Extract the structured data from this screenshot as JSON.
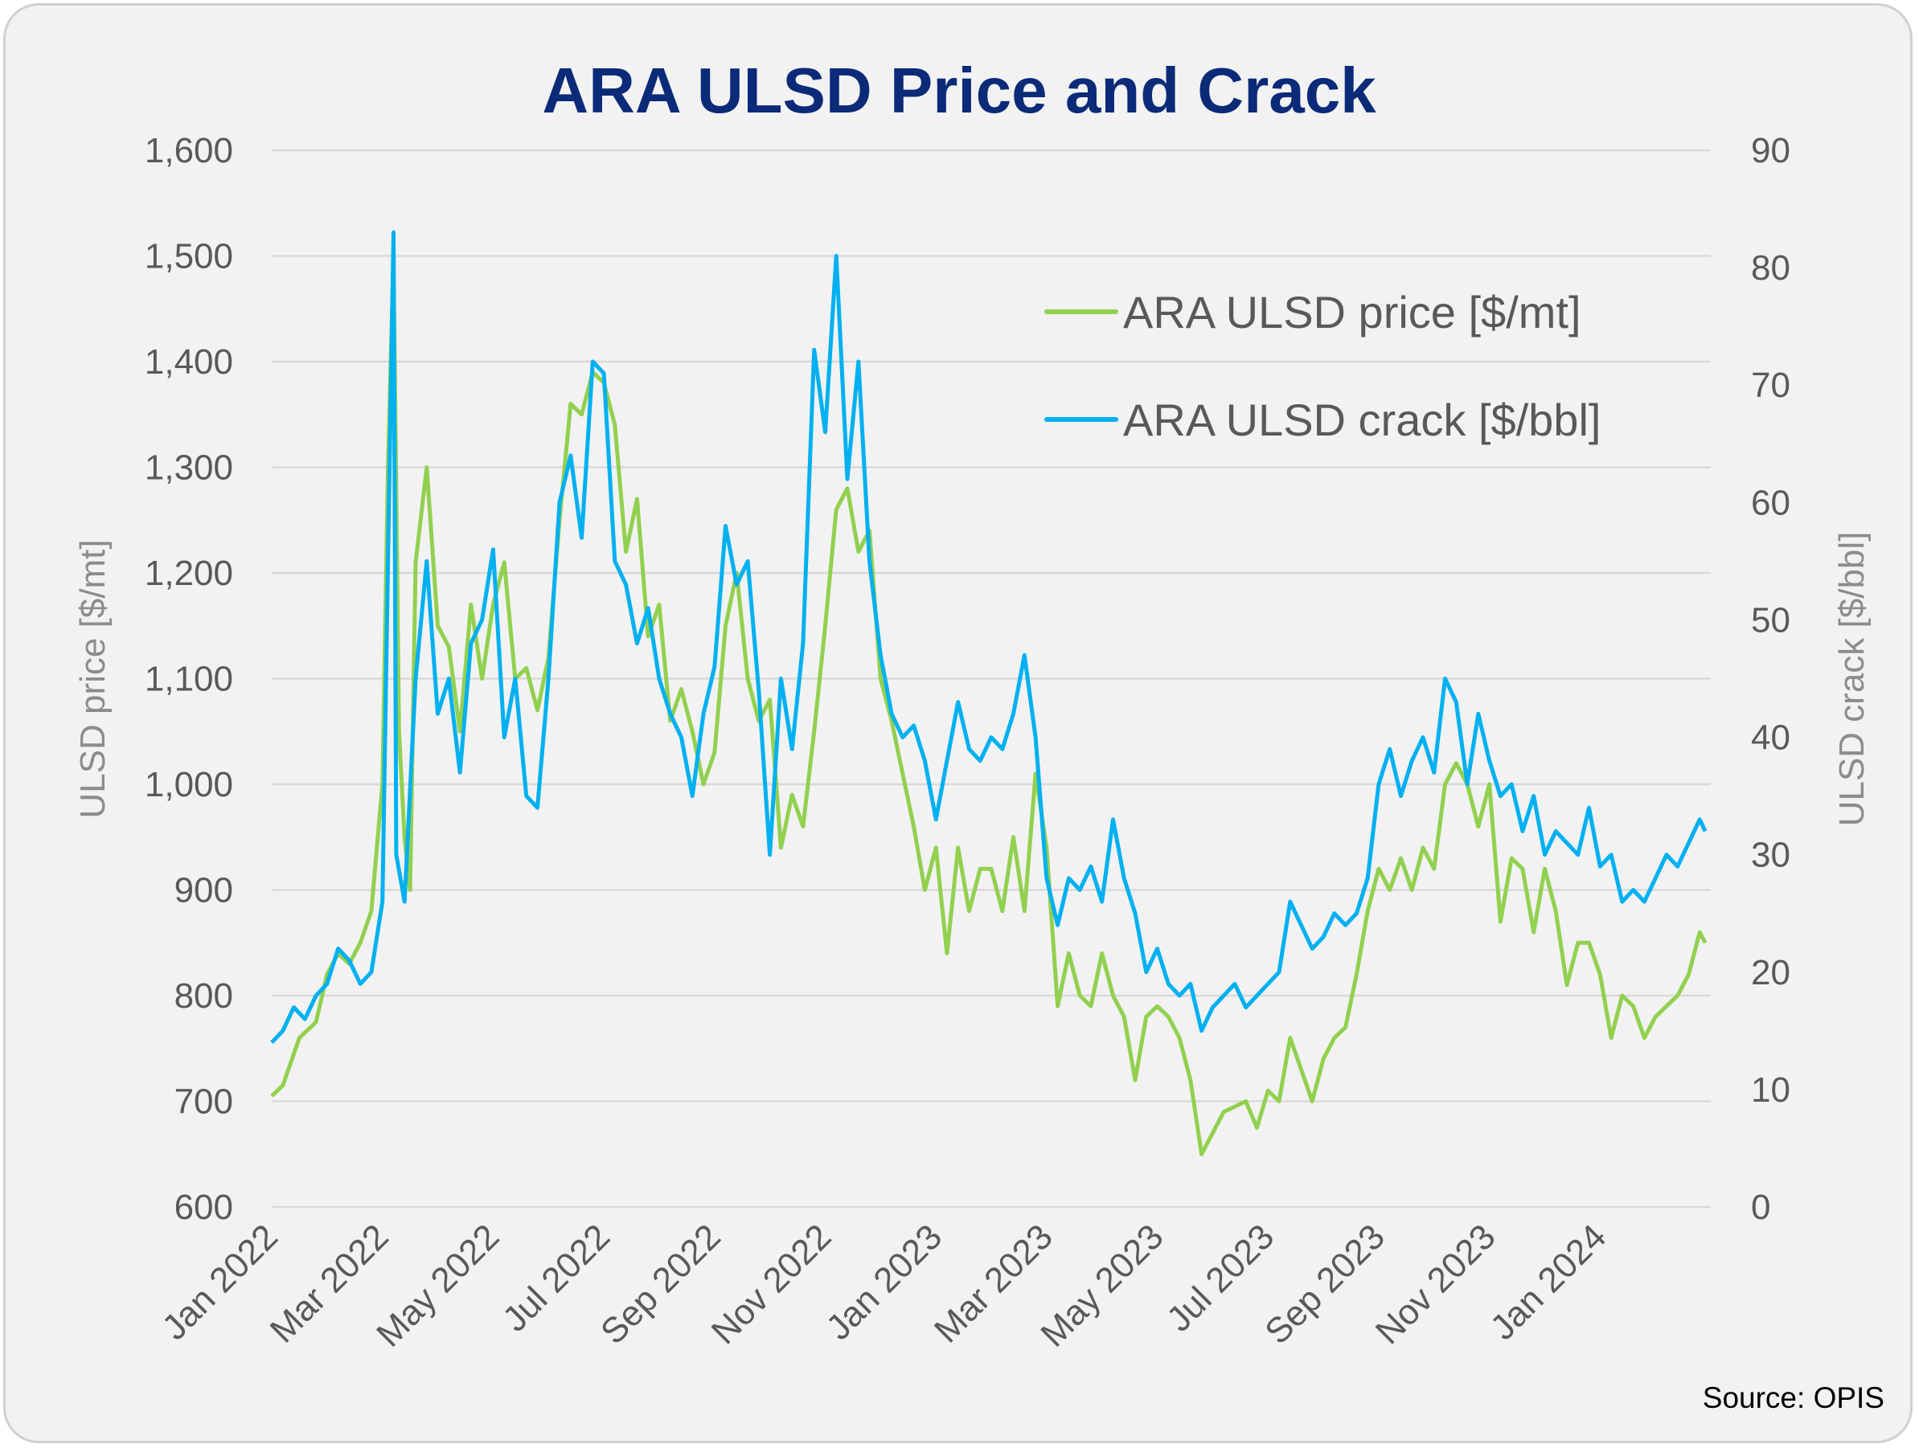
{
  "chart_data": {
    "type": "line",
    "title": "ARA ULSD Price and Crack",
    "ylabel": "ULSD price [$/mt]",
    "y2label": "ULSD crack [$/bbl]",
    "ylim": [
      600,
      1600
    ],
    "y2lim": [
      0,
      90
    ],
    "yticks": [
      "600",
      "700",
      "800",
      "900",
      "1,000",
      "1,100",
      "1,200",
      "1,300",
      "1,400",
      "1,500",
      "1,600"
    ],
    "y2ticks": [
      "0",
      "10",
      "20",
      "30",
      "40",
      "50",
      "60",
      "70",
      "80",
      "90"
    ],
    "x_unit": "months since Jan 2022",
    "xlim": [
      0,
      26
    ],
    "xticks": [
      {
        "m": 0,
        "label": "Jan 2022"
      },
      {
        "m": 2,
        "label": "Mar 2022"
      },
      {
        "m": 4,
        "label": "May 2022"
      },
      {
        "m": 6,
        "label": "Jul 2022"
      },
      {
        "m": 8,
        "label": "Sep 2022"
      },
      {
        "m": 10,
        "label": "Nov 2022"
      },
      {
        "m": 12,
        "label": "Jan 2023"
      },
      {
        "m": 14,
        "label": "Mar 2023"
      },
      {
        "m": 16,
        "label": "May 2023"
      },
      {
        "m": 18,
        "label": "Jul 2023"
      },
      {
        "m": 20,
        "label": "Sep 2023"
      },
      {
        "m": 22,
        "label": "Nov 2023"
      },
      {
        "m": 24,
        "label": "Jan 2024"
      }
    ],
    "grid": true,
    "legend_placement": "top-right",
    "series": [
      {
        "name": "ARA ULSD price [$/mt]",
        "axis": "left",
        "color": "#92d050",
        "x": [
          0,
          0.2,
          0.5,
          0.8,
          1.0,
          1.2,
          1.4,
          1.6,
          1.8,
          2.0,
          2.1,
          2.2,
          2.3,
          2.4,
          2.5,
          2.6,
          2.8,
          3.0,
          3.2,
          3.4,
          3.6,
          3.8,
          4.0,
          4.2,
          4.4,
          4.6,
          4.8,
          5.0,
          5.2,
          5.4,
          5.6,
          5.8,
          6.0,
          6.2,
          6.4,
          6.6,
          6.8,
          7.0,
          7.2,
          7.4,
          7.6,
          7.8,
          8.0,
          8.2,
          8.4,
          8.6,
          8.8,
          9.0,
          9.2,
          9.4,
          9.6,
          9.8,
          10.0,
          10.2,
          10.4,
          10.6,
          10.8,
          11.0,
          11.2,
          11.4,
          11.6,
          11.8,
          12.0,
          12.2,
          12.4,
          12.6,
          12.8,
          13.0,
          13.2,
          13.4,
          13.6,
          13.8,
          14.0,
          14.2,
          14.4,
          14.6,
          14.8,
          15.0,
          15.2,
          15.4,
          15.6,
          15.8,
          16.0,
          16.2,
          16.4,
          16.6,
          16.8,
          17.0,
          17.2,
          17.4,
          17.6,
          17.8,
          18.0,
          18.2,
          18.4,
          18.6,
          18.8,
          19.0,
          19.2,
          19.4,
          19.6,
          19.8,
          20.0,
          20.2,
          20.4,
          20.6,
          20.8,
          21.0,
          21.2,
          21.4,
          21.6,
          21.8,
          22.0,
          22.2,
          22.4,
          22.6,
          22.8,
          23.0,
          23.2,
          23.4,
          23.6,
          23.8,
          24.0,
          24.2,
          24.4,
          24.6,
          24.8,
          25.0,
          25.2,
          25.4,
          25.6,
          25.8,
          25.9
        ],
        "values": [
          705,
          715,
          760,
          775,
          820,
          840,
          830,
          850,
          880,
          1000,
          1300,
          1500,
          1050,
          950,
          900,
          1210,
          1300,
          1150,
          1130,
          1050,
          1170,
          1100,
          1170,
          1210,
          1100,
          1110,
          1070,
          1120,
          1250,
          1360,
          1350,
          1390,
          1380,
          1340,
          1220,
          1270,
          1140,
          1170,
          1060,
          1090,
          1050,
          1000,
          1030,
          1150,
          1200,
          1100,
          1060,
          1080,
          940,
          990,
          960,
          1050,
          1150,
          1260,
          1280,
          1220,
          1240,
          1100,
          1060,
          1010,
          960,
          900,
          940,
          840,
          940,
          880,
          920,
          920,
          880,
          950,
          880,
          1010,
          940,
          790,
          840,
          800,
          790,
          840,
          800,
          780,
          720,
          780,
          790,
          780,
          760,
          720,
          650,
          670,
          690,
          695,
          700,
          675,
          710,
          700,
          760,
          730,
          700,
          740,
          760,
          770,
          820,
          880,
          920,
          900,
          930,
          900,
          940,
          920,
          1000,
          1020,
          1000,
          960,
          1000,
          870,
          930,
          920,
          860,
          920,
          880,
          810,
          850,
          850,
          820,
          760,
          800,
          790,
          760,
          780,
          790,
          800,
          820,
          860,
          850
        ]
      },
      {
        "name": "ARA ULSD crack [$/bbl]",
        "axis": "right",
        "color": "#00b0f0",
        "x": [
          0,
          0.2,
          0.4,
          0.6,
          0.8,
          1.0,
          1.2,
          1.4,
          1.6,
          1.8,
          2.0,
          2.1,
          2.2,
          2.25,
          2.4,
          2.6,
          2.8,
          3.0,
          3.2,
          3.4,
          3.6,
          3.8,
          4.0,
          4.2,
          4.4,
          4.6,
          4.8,
          5.0,
          5.2,
          5.4,
          5.6,
          5.8,
          6.0,
          6.2,
          6.4,
          6.6,
          6.8,
          7.0,
          7.2,
          7.4,
          7.6,
          7.8,
          8.0,
          8.2,
          8.4,
          8.6,
          8.8,
          9.0,
          9.2,
          9.4,
          9.6,
          9.8,
          10.0,
          10.2,
          10.4,
          10.6,
          10.8,
          11.0,
          11.2,
          11.4,
          11.6,
          11.8,
          12.0,
          12.2,
          12.4,
          12.6,
          12.8,
          13.0,
          13.2,
          13.4,
          13.6,
          13.8,
          14.0,
          14.2,
          14.4,
          14.6,
          14.8,
          15.0,
          15.2,
          15.4,
          15.6,
          15.8,
          16.0,
          16.2,
          16.4,
          16.6,
          16.8,
          17.0,
          17.2,
          17.4,
          17.6,
          17.8,
          18.0,
          18.2,
          18.4,
          18.6,
          18.8,
          19.0,
          19.2,
          19.4,
          19.6,
          19.8,
          20.0,
          20.2,
          20.4,
          20.6,
          20.8,
          21.0,
          21.2,
          21.4,
          21.6,
          21.8,
          22.0,
          22.2,
          22.4,
          22.6,
          22.8,
          23.0,
          23.2,
          23.4,
          23.6,
          23.8,
          24.0,
          24.2,
          24.4,
          24.6,
          24.8,
          25.0,
          25.2,
          25.4,
          25.6,
          25.8,
          25.9
        ],
        "values": [
          14,
          15,
          17,
          16,
          18,
          19,
          22,
          21,
          19,
          20,
          26,
          55,
          83,
          30,
          26,
          45,
          55,
          42,
          45,
          37,
          48,
          50,
          56,
          40,
          45,
          35,
          34,
          45,
          60,
          64,
          57,
          72,
          71,
          55,
          53,
          48,
          51,
          45,
          42,
          40,
          35,
          42,
          46,
          58,
          53,
          55,
          44,
          30,
          45,
          39,
          48,
          73,
          66,
          81,
          62,
          72,
          55,
          47,
          42,
          40,
          41,
          38,
          33,
          38,
          43,
          39,
          38,
          40,
          39,
          42,
          47,
          40,
          28,
          24,
          28,
          27,
          29,
          26,
          33,
          28,
          25,
          20,
          22,
          19,
          18,
          19,
          15,
          17,
          18,
          19,
          17,
          18,
          19,
          20,
          26,
          24,
          22,
          23,
          25,
          24,
          25,
          28,
          36,
          39,
          35,
          38,
          40,
          37,
          45,
          43,
          36,
          42,
          38,
          35,
          36,
          32,
          35,
          30,
          32,
          31,
          30,
          34,
          29,
          30,
          26,
          27,
          26,
          28,
          30,
          29,
          31,
          33,
          32
        ]
      }
    ],
    "source": "Source: OPIS"
  }
}
